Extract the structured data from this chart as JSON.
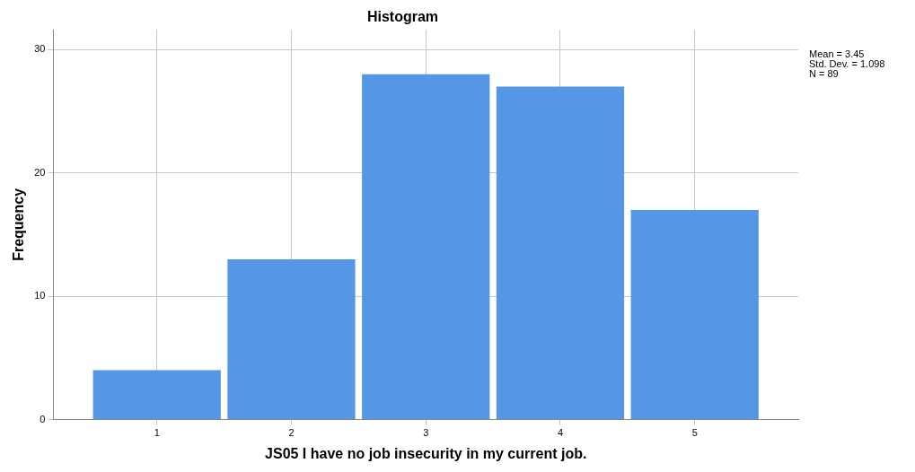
{
  "chart_data": {
    "type": "histogram",
    "title": "Histogram",
    "xlabel": "JS05 I have no job insecurity in my current job.",
    "ylabel": "Frequency",
    "bins": [
      0.5,
      1.5,
      2.5,
      3.5,
      4.5,
      5.5
    ],
    "values": [
      4,
      13,
      28,
      27,
      17
    ],
    "color": "#5596e6",
    "xlim": [
      0.23,
      5.77
    ],
    "xticks": [
      1,
      2,
      3,
      4,
      5
    ],
    "ylim": [
      0,
      31.6
    ],
    "yticks": [
      0,
      10,
      20,
      30
    ],
    "grid": true,
    "annotations": [
      "Mean = 3.45",
      "Std. Dev. = 1.098",
      "N = 89"
    ]
  }
}
